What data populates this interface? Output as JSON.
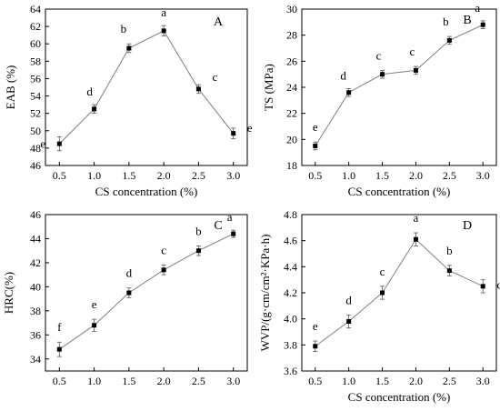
{
  "chart_data": [
    {
      "type": "line",
      "panel_label": "A",
      "xlabel": "CS concentration (%)",
      "ylabel": "EAB (%)",
      "x": [
        0.5,
        1.0,
        1.5,
        2.0,
        2.5,
        3.0
      ],
      "x_tick_labels": [
        "0.5",
        "1.0",
        "1.5",
        "2.0",
        "2.5",
        "3.0"
      ],
      "xlim": [
        0.3,
        3.2
      ],
      "ylim": [
        46,
        64
      ],
      "y_ticks": [
        46,
        48,
        50,
        52,
        54,
        56,
        58,
        60,
        62,
        64
      ],
      "values": [
        48.5,
        52.5,
        59.5,
        61.5,
        54.8,
        49.7
      ],
      "errors": [
        0.8,
        0.5,
        0.5,
        0.6,
        0.5,
        0.6
      ],
      "letters": [
        "e",
        "d",
        "b",
        "a",
        "c",
        "e"
      ]
    },
    {
      "type": "line",
      "panel_label": "B",
      "xlabel": "CS concentration (%)",
      "ylabel": "TS (MPa)",
      "x": [
        0.5,
        1.0,
        1.5,
        2.0,
        2.5,
        3.0
      ],
      "x_tick_labels": [
        "0.5",
        "1.0",
        "1.5",
        "2.0",
        "2.5",
        "3.0"
      ],
      "xlim": [
        0.3,
        3.2
      ],
      "ylim": [
        18,
        30
      ],
      "y_ticks": [
        18,
        20,
        22,
        24,
        26,
        28,
        30
      ],
      "values": [
        19.5,
        23.6,
        25.0,
        25.3,
        27.6,
        28.8
      ],
      "errors": [
        0.3,
        0.3,
        0.3,
        0.3,
        0.3,
        0.3
      ],
      "letters": [
        "e",
        "d",
        "c",
        "c",
        "b",
        "a"
      ]
    },
    {
      "type": "line",
      "panel_label": "C",
      "xlabel": "",
      "ylabel": "HRC(%)",
      "x": [
        0.5,
        1.0,
        1.5,
        2.0,
        2.5,
        3.0
      ],
      "x_tick_labels": [
        "0.5",
        "1.0",
        "1.5",
        "2.0",
        "2.5",
        "3.0"
      ],
      "xlim": [
        0.3,
        3.2
      ],
      "ylim": [
        33,
        46
      ],
      "y_ticks": [
        34,
        36,
        38,
        40,
        42,
        44,
        46
      ],
      "values": [
        34.8,
        36.8,
        39.5,
        41.4,
        43.0,
        44.4
      ],
      "errors": [
        0.6,
        0.5,
        0.4,
        0.4,
        0.4,
        0.3
      ],
      "letters": [
        "f",
        "e",
        "d",
        "c",
        "b",
        "a"
      ]
    },
    {
      "type": "line",
      "panel_label": "D",
      "xlabel": "CS concentration (%)",
      "ylabel": "WVP/(g·cm/cm²·KPa·h)",
      "x": [
        0.5,
        1.0,
        1.5,
        2.0,
        2.5,
        3.0
      ],
      "x_tick_labels": [
        "0.5",
        "1.0",
        "1.5",
        "2.0",
        "2.5",
        "3.0"
      ],
      "xlim": [
        0.3,
        3.2
      ],
      "ylim": [
        3.6,
        4.8
      ],
      "y_ticks": [
        3.6,
        3.8,
        4.0,
        4.2,
        4.4,
        4.6,
        4.8
      ],
      "values": [
        3.79,
        3.98,
        4.2,
        4.61,
        4.37,
        4.25
      ],
      "errors": [
        0.04,
        0.05,
        0.05,
        0.05,
        0.04,
        0.05
      ],
      "letters": [
        "e",
        "d",
        "c",
        "a",
        "b",
        "c"
      ]
    }
  ]
}
